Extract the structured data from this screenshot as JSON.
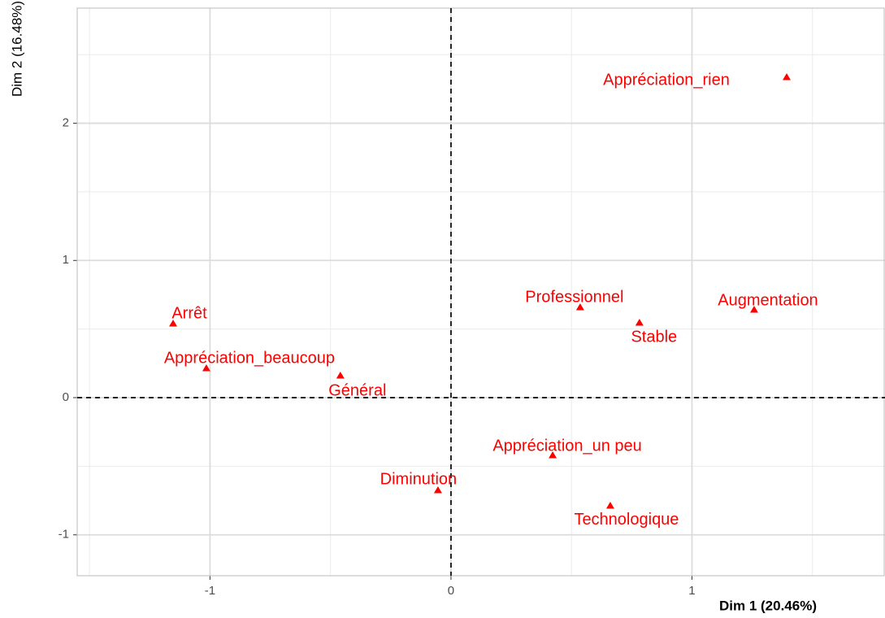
{
  "chart_data": {
    "type": "scatter",
    "xlabel": "Dim 1 (20.46%)",
    "ylabel": "Dim 2 (16.48%)",
    "labels": [
      "Appréciation_rien",
      "Professionnel",
      "Stable",
      "Augmentation",
      "Arrêt",
      "Appréciation_beaucoup",
      "Général",
      "Appréciation_un peu",
      "Diminution",
      "Technologique"
    ],
    "x": [
      1.393,
      0.536,
      0.782,
      1.258,
      -1.153,
      -1.015,
      -0.459,
      0.422,
      -0.054,
      0.661
    ],
    "y": [
      2.335,
      0.658,
      0.545,
      0.64,
      0.539,
      0.213,
      0.16,
      -0.421,
      -0.676,
      -0.788
    ],
    "color": "#ff0000",
    "xlim": [
      -1.551,
      1.801
    ],
    "ylim": [
      -1.298,
      2.839
    ],
    "xticks": [
      -1,
      0,
      1
    ],
    "yticks": [
      -1,
      0,
      1,
      2
    ],
    "grid": true
  }
}
